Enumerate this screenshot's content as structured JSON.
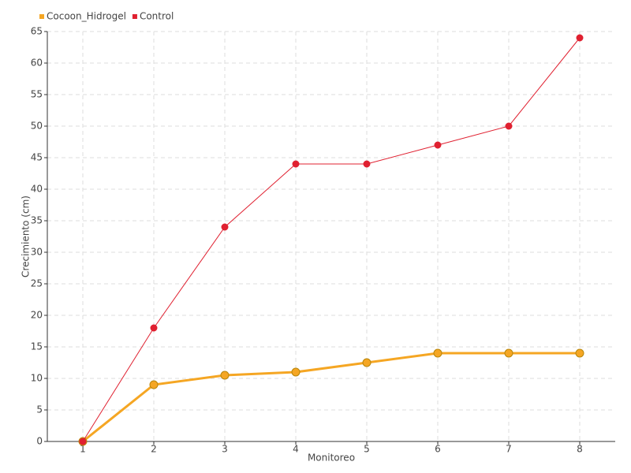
{
  "chart_data": {
    "type": "line",
    "x": [
      1,
      2,
      3,
      4,
      5,
      6,
      7,
      8
    ],
    "xlim": [
      0.5,
      8.5
    ],
    "xticks": [
      1,
      2,
      3,
      4,
      5,
      6,
      7,
      8
    ],
    "ylim": [
      0,
      65
    ],
    "yticks": [
      0,
      5,
      10,
      15,
      20,
      25,
      30,
      35,
      40,
      45,
      50,
      55,
      60,
      65
    ],
    "x_label": "Monitoreo",
    "y_label": "Crecimiento (cm)",
    "grid": true,
    "legend": "top-left",
    "series": [
      {
        "name": "Cocoon_Hidrogel",
        "color": "#f5a623",
        "values": [
          0,
          9,
          10.5,
          11,
          12.5,
          14,
          14,
          14
        ]
      },
      {
        "name": "Control",
        "color": "#e02030",
        "values": [
          0,
          18,
          34,
          44,
          44,
          47,
          50,
          64
        ]
      }
    ]
  }
}
